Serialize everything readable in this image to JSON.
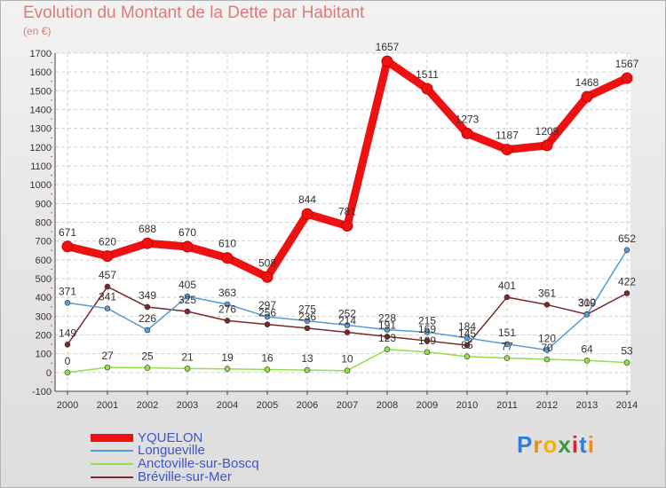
{
  "title": "Evolution du Montant de la Dette par Habitant",
  "unit": "(en €)",
  "brand": {
    "name": "Proxiti",
    "letters": [
      "P",
      "r",
      "o",
      "x",
      "i",
      "t",
      "i"
    ],
    "colors": [
      "#2f7fd8",
      "#ef8a1f",
      "#f2b200",
      "#3b9c3b",
      "#d8282d",
      "#2f7fd8",
      "#ef8a1f"
    ]
  },
  "chart_data": {
    "type": "line",
    "title": "Evolution du Montant de la Dette par Habitant",
    "ylabel": "(en €)",
    "xlabel": "",
    "ylim": [
      -100,
      1700
    ],
    "yticks": [
      -100,
      0,
      100,
      200,
      300,
      400,
      500,
      600,
      700,
      800,
      900,
      1000,
      1100,
      1200,
      1300,
      1400,
      1500,
      1600,
      1700
    ],
    "x": [
      "2000",
      "2001",
      "2002",
      "2003",
      "2004",
      "2005",
      "2006",
      "2007",
      "2008",
      "2009",
      "2010",
      "2011",
      "2012",
      "2013",
      "2014"
    ],
    "series": [
      {
        "name": "YQUELON",
        "color": "#ee1111",
        "values": [
          671,
          620,
          688,
          670,
          610,
          508,
          844,
          781,
          1657,
          1511,
          1273,
          1187,
          1209,
          1468,
          1567
        ]
      },
      {
        "name": "Longueville",
        "color": "#5b9bd5",
        "values": [
          371,
          341,
          226,
          405,
          363,
          297,
          275,
          252,
          228,
          215,
          184,
          151,
          120,
          309,
          652
        ]
      },
      {
        "name": "Anctoville-sur-Boscq",
        "color": "#92e04a",
        "values": [
          0,
          27,
          25,
          21,
          19,
          16,
          13,
          10,
          123,
          109,
          85,
          77,
          70,
          64,
          53
        ]
      },
      {
        "name": "Bréville-sur-Mer",
        "color": "#7a2a2a",
        "values": [
          149,
          457,
          349,
          325,
          276,
          256,
          236,
          214,
          191,
          169,
          145,
          401,
          361,
          310,
          422
        ]
      }
    ]
  }
}
